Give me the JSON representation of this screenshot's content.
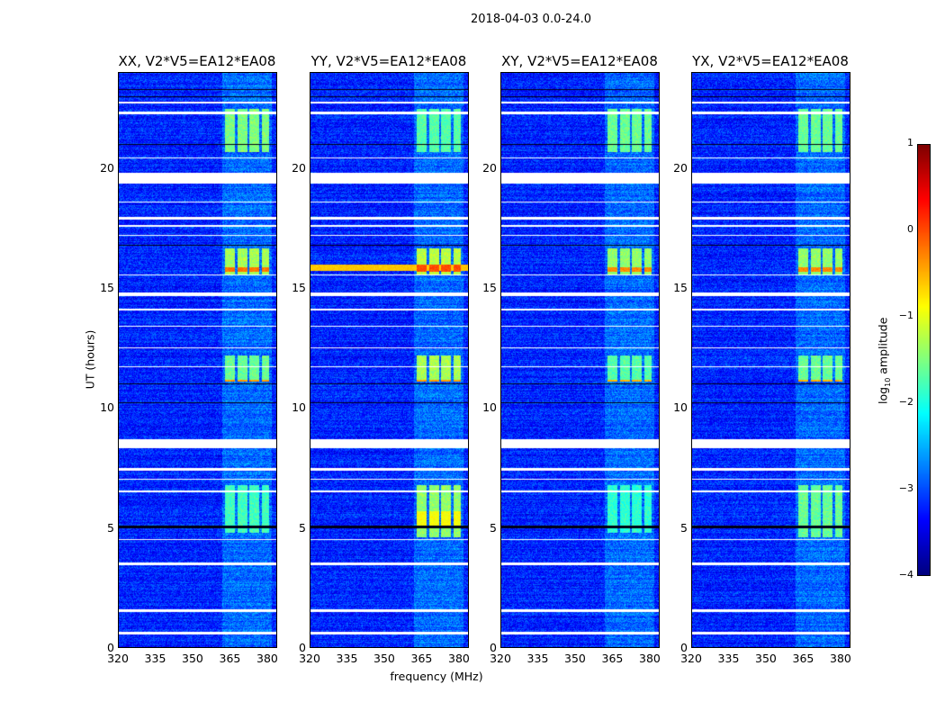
{
  "chart_data": {
    "type": "heatmap",
    "title": "2018-04-03 0.0-24.0",
    "xlabel": "frequency (MHz)",
    "ylabel": "UT (hours)",
    "xlim": [
      320,
      384
    ],
    "ylim": [
      0,
      24
    ],
    "xticks": [
      "320",
      "335",
      "350",
      "365",
      "380"
    ],
    "xtick_values": [
      320,
      335,
      350,
      365,
      380
    ],
    "yticks": [
      "0",
      "5",
      "10",
      "15",
      "20"
    ],
    "ytick_values": [
      0,
      5,
      10,
      15,
      20
    ],
    "colorbar": {
      "label_main": "log",
      "label_sub": "10",
      "label_rest": " amplitude",
      "vmin": -4,
      "vmax": 1,
      "ticks": [
        "1",
        "0",
        "−1",
        "−2",
        "−3",
        "−4"
      ],
      "tick_values": [
        1,
        0,
        -1,
        -2,
        -3,
        -4
      ],
      "colormap": "jet"
    },
    "background_level": -3.2,
    "blank_bands_hours": [
      [
        19.4,
        19.85
      ],
      [
        8.35,
        8.7
      ],
      [
        22.3,
        22.4
      ],
      [
        22.75,
        22.8
      ],
      [
        20.45,
        20.5
      ],
      [
        18.6,
        18.65
      ],
      [
        17.9,
        18.0
      ],
      [
        17.6,
        17.65
      ],
      [
        17.2,
        17.25
      ],
      [
        15.55,
        15.6
      ],
      [
        14.7,
        14.85
      ],
      [
        14.1,
        14.15
      ],
      [
        13.4,
        13.45
      ],
      [
        12.5,
        12.55
      ],
      [
        11.7,
        11.75
      ],
      [
        7.4,
        7.5
      ],
      [
        7.0,
        7.05
      ],
      [
        6.5,
        6.55
      ],
      [
        4.5,
        4.55
      ],
      [
        3.45,
        3.55
      ],
      [
        1.5,
        1.6
      ],
      [
        0.55,
        0.65
      ]
    ],
    "dark_lines_hours": [
      [
        5.0,
        5.08
      ],
      [
        23.0,
        23.05
      ],
      [
        23.3,
        23.35
      ],
      [
        21.0,
        21.05
      ],
      [
        16.8,
        16.85
      ],
      [
        11.0,
        11.05
      ],
      [
        10.2,
        10.25
      ]
    ],
    "bright_channel_groups_mhz": [
      [
        363,
        367
      ],
      [
        368,
        372
      ],
      [
        373,
        377
      ],
      [
        378,
        381
      ]
    ],
    "panels": [
      {
        "title": "XX, V2*V5=EA12*EA08",
        "active": [
          [
            20.7,
            22.5,
            -1.5
          ],
          [
            15.6,
            16.7,
            -1.3
          ],
          [
            11.1,
            12.2,
            -1.6
          ],
          [
            4.8,
            6.8,
            -1.8
          ]
        ],
        "hot": [
          [
            15.7,
            15.9,
            -0.2
          ],
          [
            11.1,
            11.2,
            -0.4
          ]
        ],
        "wide": []
      },
      {
        "title": "YY, V2*V5=EA12*EA08",
        "active": [
          [
            20.7,
            22.5,
            -1.7
          ],
          [
            15.6,
            16.7,
            -1.2
          ],
          [
            11.1,
            12.2,
            -1.3
          ],
          [
            4.6,
            6.8,
            -1.4
          ]
        ],
        "hot": [
          [
            15.7,
            16.0,
            0.0
          ],
          [
            5.0,
            5.7,
            -0.9
          ],
          [
            11.1,
            11.2,
            -0.4
          ]
        ],
        "wide": [
          [
            15.75,
            16.0,
            -0.6
          ]
        ]
      },
      {
        "title": "XY, V2*V5=EA12*EA08",
        "active": [
          [
            20.7,
            22.5,
            -1.6
          ],
          [
            15.6,
            16.7,
            -1.4
          ],
          [
            11.1,
            12.2,
            -1.7
          ],
          [
            4.8,
            6.8,
            -1.9
          ]
        ],
        "hot": [
          [
            15.7,
            15.9,
            -0.3
          ],
          [
            11.1,
            11.2,
            -0.5
          ]
        ],
        "wide": []
      },
      {
        "title": "YX, V2*V5=EA12*EA08",
        "active": [
          [
            20.7,
            22.5,
            -1.6
          ],
          [
            15.6,
            16.7,
            -1.4
          ],
          [
            11.1,
            12.2,
            -1.6
          ],
          [
            4.6,
            6.8,
            -1.6
          ]
        ],
        "hot": [
          [
            15.7,
            15.9,
            -0.3
          ],
          [
            11.1,
            11.2,
            -0.5
          ]
        ],
        "wide": []
      }
    ]
  }
}
